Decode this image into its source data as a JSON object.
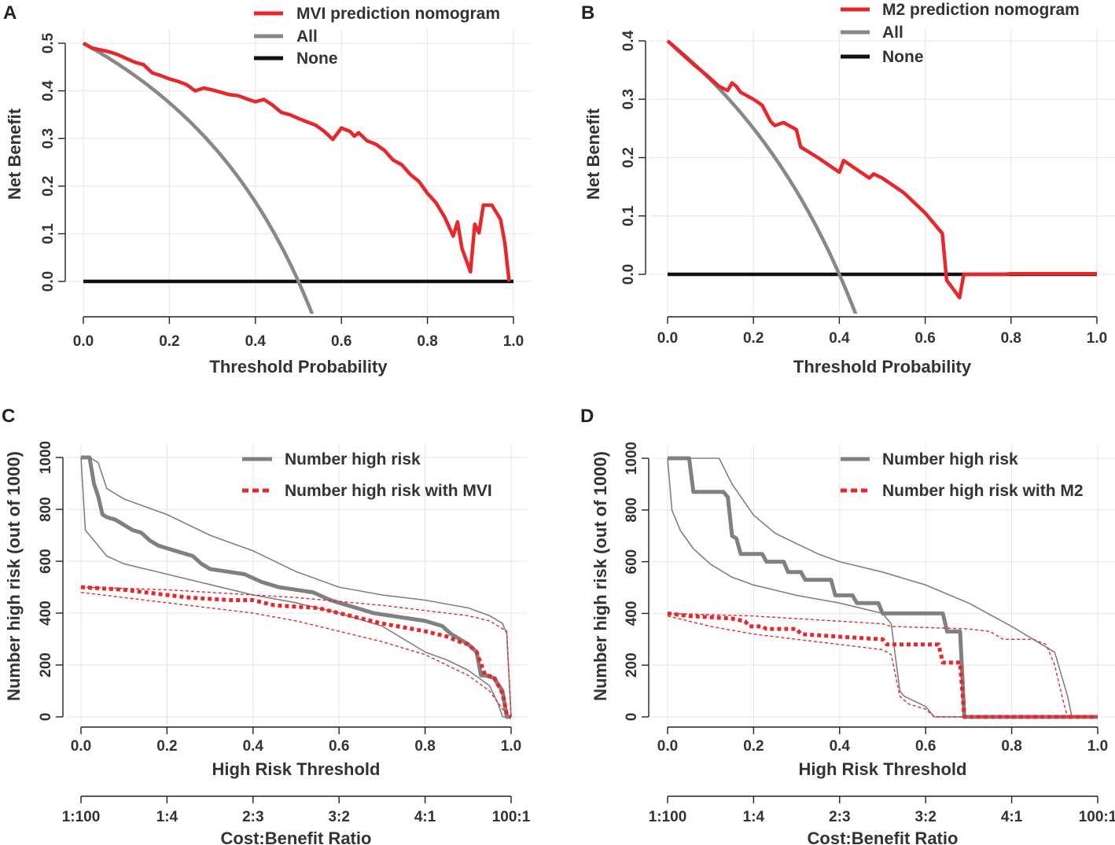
{
  "colors": {
    "model": "#e8262b",
    "all": "#888888",
    "none": "#111111",
    "risk": "#808080",
    "risk_event": "#e8262b"
  },
  "chart_data": [
    {
      "panel": "A",
      "type": "line",
      "xlabel": "Threshold Probability",
      "ylabel": "Net Benefit",
      "xlim": [
        0,
        1
      ],
      "ylim": [
        -0.075,
        0.52
      ],
      "xticks": [
        "0.0",
        "0.2",
        "0.4",
        "0.6",
        "0.8",
        "1.0"
      ],
      "yticks": [
        "0.0",
        "0.1",
        "0.2",
        "0.3",
        "0.4",
        "0.5"
      ],
      "legend": [
        "MVI prediction nomogram",
        "All",
        "None"
      ],
      "prevalence": 0.5,
      "model_curve": {
        "x": [
          0,
          0.02,
          0.04,
          0.06,
          0.08,
          0.1,
          0.12,
          0.14,
          0.16,
          0.18,
          0.2,
          0.22,
          0.24,
          0.26,
          0.28,
          0.3,
          0.32,
          0.34,
          0.36,
          0.38,
          0.4,
          0.42,
          0.44,
          0.46,
          0.48,
          0.5,
          0.52,
          0.54,
          0.56,
          0.58,
          0.6,
          0.62,
          0.63,
          0.64,
          0.66,
          0.68,
          0.7,
          0.72,
          0.74,
          0.76,
          0.78,
          0.8,
          0.82,
          0.84,
          0.86,
          0.87,
          0.88,
          0.9,
          0.91,
          0.92,
          0.93,
          0.95,
          0.97,
          0.98,
          0.99
        ],
        "y": [
          0.5,
          0.49,
          0.486,
          0.482,
          0.476,
          0.468,
          0.46,
          0.455,
          0.438,
          0.432,
          0.425,
          0.42,
          0.413,
          0.4,
          0.406,
          0.402,
          0.397,
          0.392,
          0.39,
          0.383,
          0.377,
          0.382,
          0.37,
          0.355,
          0.35,
          0.342,
          0.335,
          0.328,
          0.315,
          0.298,
          0.322,
          0.315,
          0.305,
          0.312,
          0.295,
          0.288,
          0.275,
          0.255,
          0.245,
          0.225,
          0.21,
          0.185,
          0.165,
          0.135,
          0.095,
          0.125,
          0.07,
          0.02,
          0.12,
          0.102,
          0.16,
          0.16,
          0.13,
          0.08,
          0.0
        ]
      }
    },
    {
      "panel": "B",
      "type": "line",
      "xlabel": "Threshold Probability",
      "ylabel": "Net Benefit",
      "xlim": [
        0,
        1
      ],
      "ylim": [
        -0.07,
        0.42
      ],
      "xticks": [
        "0.0",
        "0.2",
        "0.4",
        "0.6",
        "0.8",
        "1.0"
      ],
      "yticks": [
        "0.0",
        "0.1",
        "0.2",
        "0.3",
        "0.4"
      ],
      "legend": [
        "M2 prediction nomogram",
        "All",
        "None"
      ],
      "prevalence": 0.4,
      "model_curve": {
        "x": [
          0,
          0.03,
          0.06,
          0.09,
          0.12,
          0.14,
          0.15,
          0.16,
          0.17,
          0.2,
          0.22,
          0.24,
          0.25,
          0.27,
          0.3,
          0.31,
          0.35,
          0.4,
          0.41,
          0.45,
          0.47,
          0.48,
          0.5,
          0.51,
          0.55,
          0.6,
          0.64,
          0.65,
          0.68,
          0.69,
          0.7,
          0.75,
          0.78,
          0.8,
          1.0
        ],
        "y": [
          0.4,
          0.38,
          0.36,
          0.342,
          0.322,
          0.315,
          0.328,
          0.322,
          0.312,
          0.3,
          0.29,
          0.262,
          0.255,
          0.26,
          0.248,
          0.218,
          0.2,
          0.175,
          0.195,
          0.175,
          0.165,
          0.172,
          0.165,
          0.16,
          0.14,
          0.105,
          0.07,
          -0.01,
          -0.04,
          0.0,
          0.0,
          0.0,
          0.0,
          0.001,
          0.001
        ]
      }
    },
    {
      "panel": "C",
      "type": "line",
      "xlabel": "High Risk Threshold",
      "ylabel": "Number high risk (out of 1000)",
      "xlim": [
        0,
        1
      ],
      "ylim": [
        0,
        1000
      ],
      "xticks": [
        "0.0",
        "0.2",
        "0.4",
        "0.6",
        "0.8",
        "1.0"
      ],
      "yticks": [
        "0",
        "200",
        "400",
        "600",
        "800",
        "1000"
      ],
      "cost_benefit_label": "Cost:Benefit Ratio",
      "cost_benefit_ticks": [
        "1:100",
        "1:4",
        "2:3",
        "3:2",
        "4:1",
        "100:1"
      ],
      "legend": [
        "Number high risk",
        "Number high risk with MVI"
      ],
      "series": [
        {
          "name": "Number high risk",
          "x": [
            0,
            0.02,
            0.03,
            0.04,
            0.05,
            0.06,
            0.08,
            0.1,
            0.12,
            0.14,
            0.16,
            0.18,
            0.2,
            0.22,
            0.24,
            0.26,
            0.28,
            0.3,
            0.34,
            0.38,
            0.42,
            0.46,
            0.5,
            0.54,
            0.58,
            0.6,
            0.64,
            0.68,
            0.72,
            0.76,
            0.8,
            0.84,
            0.86,
            0.88,
            0.9,
            0.92,
            0.93,
            0.94,
            0.96,
            0.98,
            0.99,
            1.0
          ],
          "y": [
            1000,
            1000,
            900,
            850,
            780,
            770,
            760,
            740,
            720,
            710,
            680,
            660,
            650,
            640,
            630,
            620,
            590,
            570,
            560,
            550,
            520,
            500,
            490,
            480,
            450,
            440,
            420,
            400,
            390,
            380,
            370,
            350,
            320,
            300,
            280,
            250,
            160,
            160,
            150,
            100,
            0,
            0
          ]
        },
        {
          "name": "Number high risk upper",
          "x": [
            0,
            0.02,
            0.04,
            0.06,
            0.1,
            0.15,
            0.2,
            0.3,
            0.4,
            0.5,
            0.6,
            0.7,
            0.8,
            0.9,
            0.95,
            0.98,
            0.99,
            1.0
          ],
          "y": [
            1000,
            1000,
            980,
            880,
            840,
            810,
            780,
            700,
            640,
            560,
            500,
            470,
            450,
            420,
            390,
            360,
            320,
            0
          ]
        },
        {
          "name": "Number high risk lower",
          "x": [
            0,
            0.01,
            0.03,
            0.06,
            0.1,
            0.15,
            0.2,
            0.3,
            0.4,
            0.5,
            0.6,
            0.7,
            0.8,
            0.85,
            0.9,
            0.95,
            0.97,
            0.98,
            1.0
          ],
          "y": [
            1000,
            720,
            680,
            620,
            590,
            570,
            550,
            510,
            470,
            440,
            400,
            350,
            250,
            220,
            180,
            120,
            50,
            0,
            0
          ]
        },
        {
          "name": "Number high risk with MVI",
          "x": [
            0,
            0.05,
            0.1,
            0.15,
            0.2,
            0.25,
            0.3,
            0.35,
            0.4,
            0.45,
            0.5,
            0.55,
            0.6,
            0.65,
            0.7,
            0.75,
            0.8,
            0.85,
            0.88,
            0.9,
            0.92,
            0.94,
            0.96,
            0.98,
            0.99,
            1.0
          ],
          "y": [
            500,
            495,
            490,
            480,
            470,
            460,
            455,
            450,
            450,
            430,
            425,
            420,
            400,
            380,
            360,
            345,
            330,
            310,
            290,
            280,
            250,
            160,
            155,
            90,
            10,
            0
          ]
        },
        {
          "name": "Number high risk with MVI upper",
          "x": [
            0,
            0.1,
            0.2,
            0.3,
            0.4,
            0.5,
            0.6,
            0.7,
            0.8,
            0.9,
            0.95,
            0.99,
            1.0
          ],
          "y": [
            500,
            495,
            490,
            480,
            470,
            460,
            445,
            430,
            410,
            390,
            370,
            330,
            0
          ]
        },
        {
          "name": "Number high risk with MVI lower",
          "x": [
            0,
            0.1,
            0.2,
            0.3,
            0.4,
            0.5,
            0.6,
            0.7,
            0.8,
            0.85,
            0.9,
            0.95,
            0.98,
            1.0
          ],
          "y": [
            480,
            460,
            440,
            420,
            400,
            370,
            330,
            290,
            240,
            200,
            160,
            100,
            30,
            0
          ]
        }
      ]
    },
    {
      "panel": "D",
      "type": "line",
      "xlabel": "High Risk Threshold",
      "ylabel": "Number high risk (out of 1000)",
      "xlim": [
        0,
        1
      ],
      "ylim": [
        0,
        1000
      ],
      "xticks": [
        "0.0",
        "0.2",
        "0.4",
        "0.6",
        "0.8",
        "1.0"
      ],
      "yticks": [
        "0",
        "200",
        "400",
        "600",
        "800",
        "1000"
      ],
      "cost_benefit_label": "Cost:Benefit Ratio",
      "cost_benefit_ticks": [
        "1:100",
        "1:4",
        "2:3",
        "3:2",
        "4:1",
        "100:1"
      ],
      "legend": [
        "Number high risk",
        "Number high risk with M2"
      ],
      "series": [
        {
          "name": "Number high risk",
          "x": [
            0,
            0.05,
            0.06,
            0.13,
            0.14,
            0.15,
            0.16,
            0.17,
            0.22,
            0.23,
            0.27,
            0.28,
            0.31,
            0.32,
            0.38,
            0.39,
            0.43,
            0.44,
            0.49,
            0.5,
            0.64,
            0.65,
            0.68,
            0.69,
            0.7,
            1.0
          ],
          "y": [
            1000,
            1000,
            870,
            870,
            850,
            700,
            690,
            630,
            630,
            600,
            600,
            560,
            560,
            530,
            530,
            470,
            470,
            440,
            440,
            400,
            400,
            330,
            330,
            0,
            0,
            0
          ]
        },
        {
          "name": "Number high risk upper",
          "x": [
            0,
            0.12,
            0.15,
            0.2,
            0.25,
            0.3,
            0.35,
            0.4,
            0.5,
            0.6,
            0.7,
            0.8,
            0.85,
            0.88,
            0.9,
            0.93,
            0.94,
            1.0
          ],
          "y": [
            1000,
            1000,
            900,
            780,
            710,
            670,
            630,
            600,
            560,
            510,
            440,
            350,
            300,
            270,
            250,
            80,
            0,
            0
          ]
        },
        {
          "name": "Number high risk lower",
          "x": [
            0,
            0.01,
            0.03,
            0.06,
            0.1,
            0.15,
            0.2,
            0.3,
            0.4,
            0.45,
            0.5,
            0.52,
            0.54,
            0.55,
            0.6,
            0.62,
            1.0
          ],
          "y": [
            1000,
            800,
            720,
            650,
            590,
            540,
            510,
            470,
            440,
            420,
            400,
            360,
            100,
            80,
            40,
            0,
            0
          ]
        },
        {
          "name": "Number high risk with M2",
          "x": [
            0,
            0.05,
            0.1,
            0.15,
            0.18,
            0.19,
            0.22,
            0.23,
            0.3,
            0.31,
            0.4,
            0.5,
            0.51,
            0.6,
            0.63,
            0.64,
            0.68,
            0.69,
            1.0
          ],
          "y": [
            400,
            390,
            385,
            380,
            370,
            350,
            350,
            340,
            340,
            320,
            310,
            300,
            280,
            280,
            280,
            210,
            210,
            0,
            0
          ]
        },
        {
          "name": "Number high risk with M2 upper",
          "x": [
            0,
            0.2,
            0.3,
            0.4,
            0.5,
            0.52,
            0.7,
            0.75,
            0.78,
            0.85,
            0.88,
            0.9,
            0.92,
            0.93,
            1.0
          ],
          "y": [
            400,
            390,
            380,
            370,
            360,
            350,
            340,
            330,
            300,
            300,
            280,
            200,
            60,
            0,
            0
          ]
        },
        {
          "name": "Number high risk with M2 lower",
          "x": [
            0,
            0.1,
            0.2,
            0.3,
            0.4,
            0.5,
            0.52,
            0.54,
            0.56,
            0.6,
            0.62,
            1.0
          ],
          "y": [
            390,
            350,
            320,
            300,
            280,
            260,
            240,
            80,
            50,
            30,
            0,
            0
          ]
        }
      ]
    }
  ]
}
